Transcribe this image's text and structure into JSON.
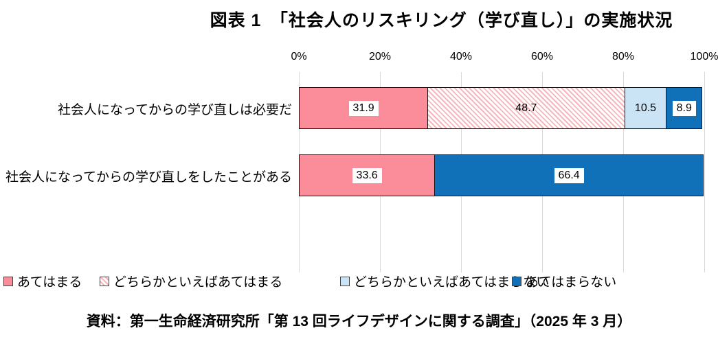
{
  "title": "図表 1　「社会人のリスキリング（学び直し）」の実施状況",
  "source": "資料：第一生命経済研究所「第 13 回ライフデザインに関する調査」（2025 年 3 月）",
  "colors": {
    "pink_solid": "#FB8D9A",
    "pink_hatch_stripe": "#F5B6BC",
    "hatch_background": "#FFFFFF",
    "light_blue": "#CAE4F5",
    "dark_blue": "#1171B8",
    "gridline": "#D9D9D9",
    "bar_border": "#141414",
    "value_label_box": "#FFFFFF",
    "text": "#000000"
  },
  "chart_data": {
    "type": "bar",
    "orientation": "horizontal",
    "stacked": true,
    "unit": "%",
    "xlim": [
      0,
      100
    ],
    "x_ticks": [
      "0%",
      "20%",
      "40%",
      "60%",
      "80%",
      "100%"
    ],
    "grid": true,
    "legend_position": "bottom",
    "categories": [
      "社会人になってからの学び直しは必要だ",
      "社会人になってからの学び直しをしたことがある"
    ],
    "series": [
      {
        "name": "あてはまる",
        "color": "#FB8D9A",
        "pattern": "solid",
        "values": [
          31.9,
          33.6
        ]
      },
      {
        "name": "どちらかといえばあてはまる",
        "color": "#F5B6BC",
        "pattern": "diagonal-hatch",
        "hatch_bg": "#FFFFFF",
        "values": [
          48.7,
          null
        ]
      },
      {
        "name": "どちらかといえばあてはまらない",
        "color": "#CAE4F5",
        "pattern": "solid",
        "values": [
          10.5,
          null
        ]
      },
      {
        "name": "あてはまらない",
        "color": "#1171B8",
        "pattern": "solid",
        "values": [
          8.9,
          66.4
        ]
      }
    ],
    "bars": [
      {
        "category": "社会人になってからの学び直しは必要だ",
        "segments": [
          {
            "series_index": 0,
            "value": 31.9,
            "boxed": true
          },
          {
            "series_index": 1,
            "value": 48.7,
            "boxed": false
          },
          {
            "series_index": 2,
            "value": 10.5,
            "boxed": false
          },
          {
            "series_index": 3,
            "value": 8.9,
            "boxed": true
          }
        ]
      },
      {
        "category": "社会人になってからの学び直しをしたことがある",
        "segments": [
          {
            "series_index": 0,
            "value": 33.6,
            "boxed": true
          },
          {
            "series_index": 3,
            "value": 66.4,
            "boxed": true
          }
        ]
      }
    ]
  }
}
